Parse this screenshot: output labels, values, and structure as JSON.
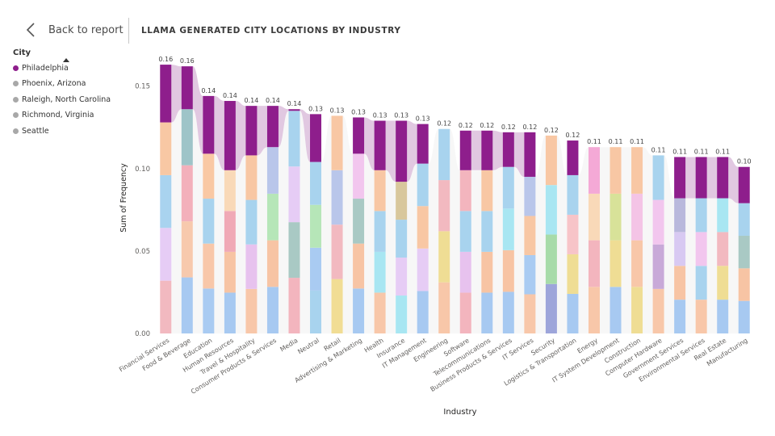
{
  "header": {
    "back_label": "Back to report",
    "title": "LLAMA GENERATED CITY LOCATIONS BY INDUSTRY"
  },
  "legend": {
    "title": "City",
    "items": [
      {
        "label": "Philadelphia",
        "color": "#8E1E8C"
      },
      {
        "label": "Phoenix, Arizona",
        "color": "#A8A8A8"
      },
      {
        "label": "Raleigh, North Carolina",
        "color": "#A8A8A8"
      },
      {
        "label": "Richmond, Virginia",
        "color": "#A8A8A8"
      },
      {
        "label": "Seattle",
        "color": "#A8A8A8"
      }
    ]
  },
  "chart_data": {
    "type": "bar",
    "subtype": "ribbon",
    "xlabel": "Industry",
    "ylabel": "Sum of Frequency",
    "ylim": [
      0,
      0.165
    ],
    "yticks": [
      "0.00",
      "0.05",
      "0.10",
      "0.15"
    ],
    "highlight_series": "Philadelphia",
    "highlight_color": "#8E1E8C",
    "categories": [
      "Financial Services",
      "Food & Beverage",
      "Education",
      "Human Resources",
      "Travel & Hospitality",
      "Consumer Products & Services",
      "Media",
      "Neutral",
      "Retail",
      "Advertising & Marketing",
      "Health",
      "Insurance",
      "IT Management",
      "Engineering",
      "Software",
      "Telecommunications",
      "Business Products & Services",
      "IT Services",
      "Security",
      "Logistics & Transportation",
      "Energy",
      "IT System Development",
      "Construction",
      "Computer Hardware",
      "Government Services",
      "Environmental Services",
      "Real Estate",
      "Manufacturing"
    ],
    "totals": [
      0.163,
      0.162,
      0.144,
      0.141,
      0.138,
      0.138,
      0.136,
      0.133,
      0.132,
      0.131,
      0.129,
      0.129,
      0.127,
      0.124,
      0.123,
      0.123,
      0.122,
      0.122,
      0.12,
      0.117,
      0.113,
      0.113,
      0.113,
      0.108,
      0.107,
      0.107,
      0.107,
      0.101
    ],
    "data_labels": [
      "0.16",
      "0.16",
      "0.14",
      "0.14",
      "0.14",
      "0.14",
      "0.14",
      "0.13",
      "0.13",
      "0.13",
      "0.13",
      "0.13",
      "0.13",
      "0.12",
      "0.12",
      "0.12",
      "0.12",
      "0.12",
      "0.12",
      "0.12",
      "0.11",
      "0.11",
      "0.11",
      "0.11",
      "0.11",
      "0.11",
      "0.11",
      "0.10"
    ],
    "philadelphia": [
      0.035,
      0.026,
      0.035,
      0.042,
      0.03,
      0.025,
      0.001,
      0.029,
      0.0,
      0.022,
      0.03,
      0.037,
      0.024,
      0.0,
      0.024,
      0.024,
      0.021,
      0.027,
      0.0,
      0.021,
      0.0,
      0.0,
      0.0,
      0.0,
      0.025,
      0.025,
      0.025,
      0.022
    ],
    "segment_colors": [
      [
        "#F2B9C0",
        "#E6CCF5",
        "#A9D3EF",
        "#F8C8A4"
      ],
      [
        "#A7C9F1",
        "#F7C9AD",
        "#F3B0BB",
        "#9EC4C8"
      ],
      [
        "#A9CBF2",
        "#F8C7A9",
        "#A8D3EE",
        "#F9C8A4"
      ],
      [
        "#A7C9F1",
        "#F7C4A4",
        "#F0A9B6",
        "#F9D9B8"
      ],
      [
        "#F8C7A9",
        "#E7C2EE",
        "#A8D3EE",
        "#F8C7A4"
      ],
      [
        "#A7C9F1",
        "#F7C4A4",
        "#B6E6B8",
        "#B9C6EA"
      ],
      [
        "#F3B5BE",
        "#A9C9C4",
        "#E6CCF5",
        "#A8D3EE"
      ],
      [
        "#A8D3EE",
        "#A9CBF2",
        "#B6E6B8",
        "#A8D3EE"
      ],
      [
        "#F1DD94",
        "#F2B9C0",
        "#B9C6EA",
        "#F8C7A4"
      ],
      [
        "#A7C9F1",
        "#F7C4A4",
        "#A9C9C4",
        "#F2C6EE"
      ],
      [
        "#F8C7A9",
        "#A8E6F2",
        "#A8D3EE",
        "#F8C7A4"
      ],
      [
        "#A8E6F2",
        "#E6CCF5",
        "#A8D3EE",
        "#D8C79C"
      ],
      [
        "#A7C9F1",
        "#E6CCF5",
        "#F8C7A4",
        "#A8D3EE"
      ],
      [
        "#F8C7A9",
        "#EFDD94",
        "#F2B9C0",
        "#A8D3EE"
      ],
      [
        "#F3B5BE",
        "#E7C2EE",
        "#A8D3EE",
        "#F3B5BE"
      ],
      [
        "#A7C9F1",
        "#F7C4A4",
        "#A8D3EE",
        "#F8C7A4"
      ],
      [
        "#A7C9F1",
        "#F7C4A4",
        "#A8E6F2",
        "#A8D3EE"
      ],
      [
        "#F8C7A9",
        "#A9CBF2",
        "#F8C7A4",
        "#B9C6EA"
      ],
      [
        "#9DA5DA",
        "#A7DBA9",
        "#A8E6F2",
        "#F8C7A4"
      ],
      [
        "#A7C9F1",
        "#EFDD94",
        "#F7C4C8",
        "#A8D3EE"
      ],
      [
        "#F8C7A9",
        "#F3B5BE",
        "#F9D9B8",
        "#F4A9D6"
      ],
      [
        "#A7C9F1",
        "#EFDD94",
        "#D8E299",
        "#F8C7A4"
      ],
      [
        "#EFDD94",
        "#F8C7A9",
        "#F4C4E6",
        "#F8C7A4"
      ],
      [
        "#F8C7A9",
        "#C8A9D8",
        "#F2C6EE",
        "#A8D3EE"
      ],
      [
        "#A7C9F1",
        "#F7C4A4",
        "#D8C9F2",
        "#B9B8DC"
      ],
      [
        "#F8C7A9",
        "#A8D3EE",
        "#F2C6EE",
        "#A8D3EE"
      ],
      [
        "#A7C9F1",
        "#EFDD94",
        "#F2B9C0",
        "#A8E6F2"
      ],
      [
        "#A7C9F1",
        "#F7C4A4",
        "#A9C9C4",
        "#A8D3EE"
      ]
    ]
  }
}
